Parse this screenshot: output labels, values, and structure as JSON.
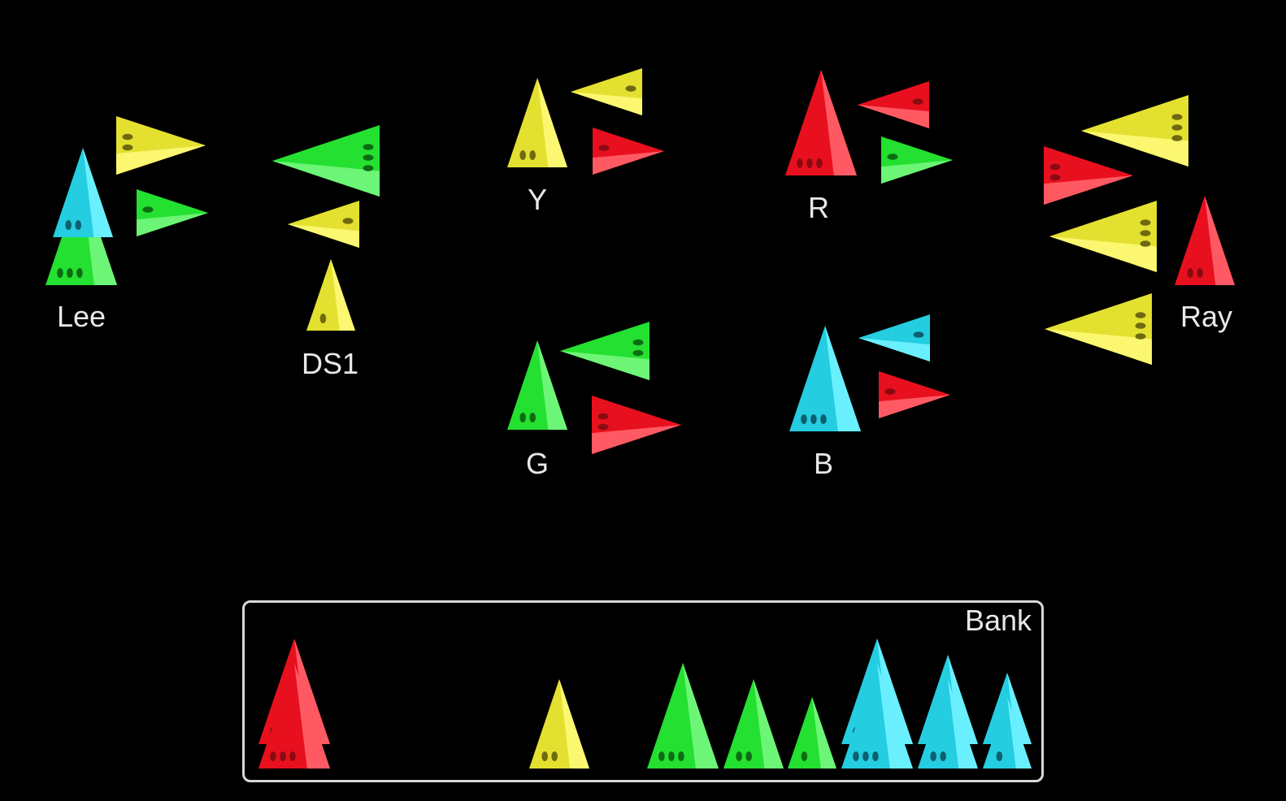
{
  "colors": {
    "red": {
      "main": "#e8101e",
      "light": "#ff5a64",
      "pip": "#8a0a12"
    },
    "yellow": {
      "main": "#e4e030",
      "light": "#fbf770",
      "pip": "#6e6a10"
    },
    "green": {
      "main": "#24e030",
      "light": "#6cf576",
      "pip": "#0c6c12"
    },
    "cyan": {
      "main": "#24cde0",
      "light": "#6aefff",
      "pip": "#0c6070"
    }
  },
  "systems": [
    {
      "id": "lee",
      "name": "Lee",
      "kind": "homeworld"
    },
    {
      "id": "ds1",
      "name": "DS1",
      "kind": "system"
    },
    {
      "id": "y",
      "name": "Y",
      "kind": "system"
    },
    {
      "id": "r",
      "name": "R",
      "kind": "system"
    },
    {
      "id": "g",
      "name": "G",
      "kind": "system"
    },
    {
      "id": "b",
      "name": "B",
      "kind": "system"
    },
    {
      "id": "ray",
      "name": "Ray",
      "kind": "homeworld"
    }
  ],
  "bank": {
    "title": "Bank",
    "stacks": [
      {
        "color": "red",
        "sizes": [
          3,
          3
        ]
      },
      {
        "color": "yellow",
        "sizes": [
          2
        ]
      },
      {
        "color": "green",
        "sizes": [
          3
        ]
      },
      {
        "color": "green",
        "sizes": [
          2
        ]
      },
      {
        "color": "green",
        "sizes": [
          1
        ]
      },
      {
        "color": "cyan",
        "sizes": [
          3,
          3
        ]
      },
      {
        "color": "cyan",
        "sizes": [
          2,
          2
        ]
      },
      {
        "color": "cyan",
        "sizes": [
          1,
          1
        ]
      }
    ]
  },
  "pieces": [
    {
      "system": "lee",
      "role": "star",
      "color": "green",
      "size": 3
    },
    {
      "system": "lee",
      "role": "star",
      "color": "cyan",
      "size": 2
    },
    {
      "system": "lee",
      "role": "ship",
      "color": "yellow",
      "size": 2,
      "facing": "right"
    },
    {
      "system": "lee",
      "role": "ship",
      "color": "green",
      "size": 1,
      "facing": "right"
    },
    {
      "system": "ds1",
      "role": "star",
      "color": "yellow",
      "size": 1
    },
    {
      "system": "ds1",
      "role": "ship",
      "color": "green",
      "size": 3,
      "facing": "left"
    },
    {
      "system": "ds1",
      "role": "ship",
      "color": "yellow",
      "size": 1,
      "facing": "left"
    },
    {
      "system": "y",
      "role": "star",
      "color": "yellow",
      "size": 2
    },
    {
      "system": "y",
      "role": "ship",
      "color": "yellow",
      "size": 1,
      "facing": "left"
    },
    {
      "system": "y",
      "role": "ship",
      "color": "red",
      "size": 1,
      "facing": "right"
    },
    {
      "system": "r",
      "role": "star",
      "color": "red",
      "size": 3
    },
    {
      "system": "r",
      "role": "ship",
      "color": "red",
      "size": 1,
      "facing": "left"
    },
    {
      "system": "r",
      "role": "ship",
      "color": "green",
      "size": 1,
      "facing": "right"
    },
    {
      "system": "g",
      "role": "star",
      "color": "green",
      "size": 2
    },
    {
      "system": "g",
      "role": "ship",
      "color": "green",
      "size": 2,
      "facing": "left"
    },
    {
      "system": "g",
      "role": "ship",
      "color": "red",
      "size": 2,
      "facing": "right"
    },
    {
      "system": "b",
      "role": "star",
      "color": "cyan",
      "size": 3
    },
    {
      "system": "b",
      "role": "ship",
      "color": "cyan",
      "size": 1,
      "facing": "left"
    },
    {
      "system": "b",
      "role": "ship",
      "color": "red",
      "size": 1,
      "facing": "right"
    },
    {
      "system": "ray",
      "role": "star",
      "color": "red",
      "size": 2
    },
    {
      "system": "ray",
      "role": "ship",
      "color": "yellow",
      "size": 3,
      "facing": "left"
    },
    {
      "system": "ray",
      "role": "ship",
      "color": "red",
      "size": 2,
      "facing": "right"
    },
    {
      "system": "ray",
      "role": "ship",
      "color": "yellow",
      "size": 3,
      "facing": "left"
    },
    {
      "system": "ray",
      "role": "ship",
      "color": "yellow",
      "size": 3,
      "facing": "left"
    }
  ]
}
